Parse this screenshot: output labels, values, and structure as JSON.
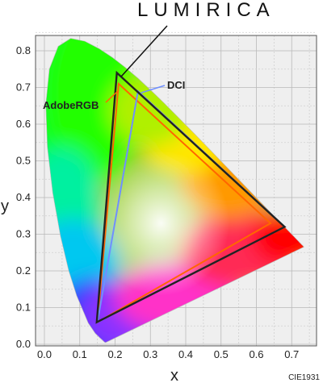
{
  "brand": {
    "text": "LUMIRICA"
  },
  "footnote": "CIE1931",
  "chart_data": {
    "type": "scatter",
    "title": "",
    "xlabel": "x",
    "ylabel": "y",
    "xlim": [
      0,
      0.75
    ],
    "ylim": [
      0,
      0.85
    ],
    "x_ticks": [
      "0.0",
      "0.1",
      "0.2",
      "0.3",
      "0.4",
      "0.5",
      "0.6",
      "0.7"
    ],
    "y_ticks": [
      "0.0",
      "0.1",
      "0.2",
      "0.3",
      "0.4",
      "0.5",
      "0.6",
      "0.7",
      "0.8"
    ],
    "grid": true,
    "spectral_locus": [
      [
        0.1741,
        0.005
      ],
      [
        0.1738,
        0.0049
      ],
      [
        0.1726,
        0.0048
      ],
      [
        0.1714,
        0.0051
      ],
      [
        0.1689,
        0.0069
      ],
      [
        0.1644,
        0.0109
      ],
      [
        0.1566,
        0.0177
      ],
      [
        0.144,
        0.0297
      ],
      [
        0.1241,
        0.0578
      ],
      [
        0.0913,
        0.1327
      ],
      [
        0.0687,
        0.2007
      ],
      [
        0.0454,
        0.295
      ],
      [
        0.0235,
        0.4127
      ],
      [
        0.0082,
        0.5384
      ],
      [
        0.0039,
        0.6548
      ],
      [
        0.0139,
        0.7502
      ],
      [
        0.0389,
        0.812
      ],
      [
        0.0743,
        0.8338
      ],
      [
        0.1142,
        0.8262
      ],
      [
        0.1547,
        0.8059
      ],
      [
        0.1929,
        0.7816
      ],
      [
        0.2296,
        0.7543
      ],
      [
        0.2658,
        0.7243
      ],
      [
        0.3016,
        0.6923
      ],
      [
        0.3373,
        0.6589
      ],
      [
        0.3731,
        0.6245
      ],
      [
        0.4087,
        0.5896
      ],
      [
        0.4441,
        0.5547
      ],
      [
        0.4788,
        0.5202
      ],
      [
        0.5125,
        0.4866
      ],
      [
        0.5448,
        0.4544
      ],
      [
        0.5752,
        0.4242
      ],
      [
        0.6029,
        0.3965
      ],
      [
        0.627,
        0.3725
      ],
      [
        0.6482,
        0.3514
      ],
      [
        0.6658,
        0.334
      ],
      [
        0.6801,
        0.3197
      ],
      [
        0.6915,
        0.3083
      ],
      [
        0.7006,
        0.2993
      ],
      [
        0.7079,
        0.292
      ],
      [
        0.714,
        0.2859
      ],
      [
        0.719,
        0.2809
      ],
      [
        0.723,
        0.277
      ],
      [
        0.726,
        0.274
      ],
      [
        0.7283,
        0.2717
      ],
      [
        0.73,
        0.27
      ],
      [
        0.7347,
        0.2653
      ]
    ],
    "series": [
      {
        "name": "AdobeRGB",
        "color": "#ff6600",
        "points": [
          [
            0.64,
            0.33
          ],
          [
            0.21,
            0.71
          ],
          [
            0.15,
            0.06
          ]
        ]
      },
      {
        "name": "DCI",
        "color": "#6f8fff",
        "points": [
          [
            0.68,
            0.32
          ],
          [
            0.265,
            0.69
          ],
          [
            0.15,
            0.06
          ]
        ]
      },
      {
        "name": "",
        "color": "#222222",
        "points": [
          [
            0.68,
            0.32
          ],
          [
            0.205,
            0.74
          ],
          [
            0.148,
            0.06
          ]
        ]
      }
    ]
  }
}
